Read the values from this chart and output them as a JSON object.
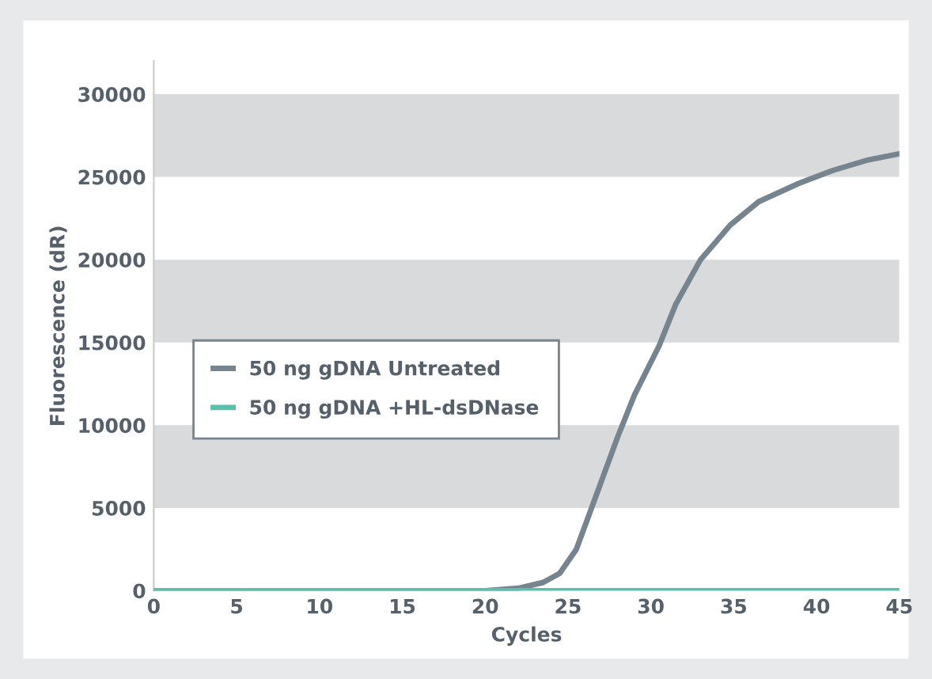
{
  "chart_data": {
    "type": "line",
    "xlabel": "Cycles",
    "ylabel": "Fluorescence (dR)",
    "xlim": [
      0,
      45
    ],
    "xticks": [
      0,
      5,
      10,
      15,
      20,
      25,
      30,
      35,
      40,
      45
    ],
    "ylim": [
      0,
      32000
    ],
    "yticks": [
      0,
      5000,
      10000,
      15000,
      20000,
      25000,
      30000
    ],
    "grid": false,
    "legend": "left",
    "marker": "none",
    "line_style": "solid",
    "bands": [
      {
        "axis": "y",
        "from": 5000,
        "to": 10000,
        "color": "#d9dadb"
      },
      {
        "axis": "y",
        "from": 15000,
        "to": 20000,
        "color": "#d9dadb"
      },
      {
        "axis": "y",
        "from": 25000,
        "to": 30000,
        "color": "#d9dadb"
      }
    ],
    "series": [
      {
        "name": "50 ng gDNA Untreated",
        "color": "#76848f",
        "x": [
          0,
          20,
          22,
          23.5,
          24.5,
          25.5,
          26.9,
          28,
          29,
          30.5,
          31.5,
          33,
          34.8,
          36.5,
          38.9,
          41,
          43,
          45
        ],
        "values": [
          0,
          0,
          150,
          500,
          1050,
          2500,
          6300,
          9300,
          11800,
          14800,
          17300,
          20000,
          22100,
          23500,
          24600,
          25400,
          26000,
          26400
        ]
      },
      {
        "name": "50 ng gDNA +HL-dsDNase",
        "color": "#5bbfad",
        "x": [
          0,
          45
        ],
        "values": [
          0,
          0
        ]
      }
    ]
  }
}
